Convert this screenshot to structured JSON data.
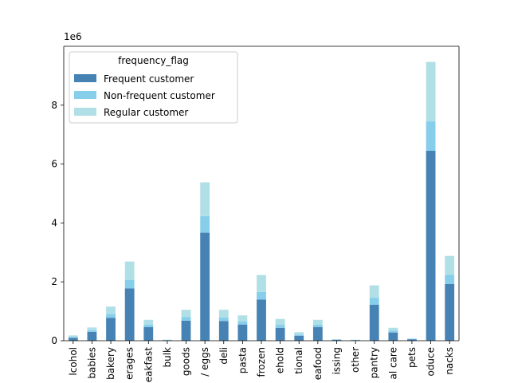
{
  "chart_data": {
    "type": "bar",
    "stacked": true,
    "title": "",
    "xlabel": "",
    "ylabel": "",
    "y_offset_label": "1e6",
    "ylim": [
      0,
      10.0
    ],
    "yticks": [
      0,
      2,
      4,
      6,
      8
    ],
    "legend": {
      "title": "frequency_flag",
      "placement": "upper-left"
    },
    "categories": [
      "alcohol",
      "babies",
      "bakery",
      "beverages",
      "breakfast",
      "bulk",
      "canned goods",
      "dairy eggs",
      "deli",
      "pasta",
      "frozen",
      "household",
      "international",
      "meat seafood",
      "missing",
      "other",
      "pantry",
      "personal care",
      "pets",
      "produce",
      "snacks"
    ],
    "visible_tick_labels": [
      "lcohol",
      "babies",
      "bakery",
      "erages",
      "eakfast",
      "bulk",
      "goods",
      "/ eggs",
      "deli",
      "pasta",
      "frozen",
      "ehold",
      "tional",
      "eafood",
      "issing",
      "other",
      "pantry",
      "al care",
      "pets",
      "oduce",
      "nacks"
    ],
    "series": [
      {
        "name": "Frequent customer",
        "color": "#4682b4",
        "values": [
          0.1,
          0.3,
          0.78,
          1.78,
          0.46,
          0.02,
          0.68,
          3.67,
          0.67,
          0.55,
          1.4,
          0.44,
          0.17,
          0.46,
          0.03,
          0.02,
          1.22,
          0.28,
          0.05,
          6.45,
          1.93
        ]
      },
      {
        "name": "Non-frequent customer",
        "color": "#87ceeb",
        "values": [
          0.03,
          0.06,
          0.13,
          0.29,
          0.09,
          0.005,
          0.13,
          0.56,
          0.12,
          0.1,
          0.26,
          0.1,
          0.04,
          0.09,
          0.008,
          0.005,
          0.24,
          0.06,
          0.01,
          1.0,
          0.31
        ]
      },
      {
        "name": "Regular customer",
        "color": "#b0e0e6",
        "values": [
          0.05,
          0.09,
          0.25,
          0.62,
          0.16,
          0.01,
          0.24,
          1.15,
          0.26,
          0.21,
          0.57,
          0.2,
          0.08,
          0.16,
          0.015,
          0.01,
          0.42,
          0.1,
          0.02,
          2.02,
          0.64
        ]
      }
    ]
  }
}
